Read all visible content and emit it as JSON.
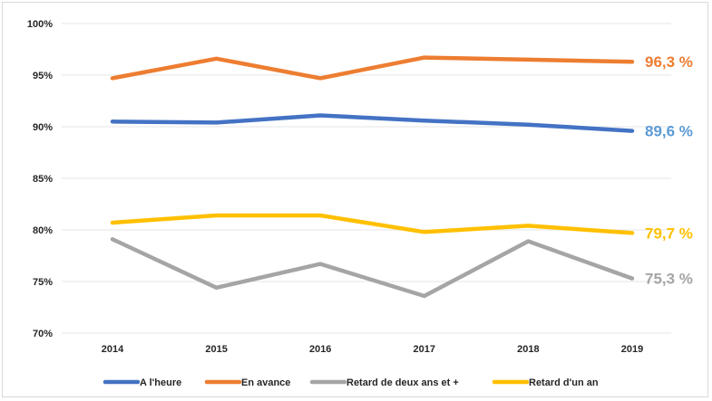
{
  "chart_data": {
    "type": "line",
    "categories": [
      "2014",
      "2015",
      "2016",
      "2017",
      "2018",
      "2019"
    ],
    "ylim": [
      0.7,
      1.0
    ],
    "yticks": [
      {
        "value": 1.0,
        "label": "100%"
      },
      {
        "value": 0.95,
        "label": "95%"
      },
      {
        "value": 0.9,
        "label": "90%"
      },
      {
        "value": 0.85,
        "label": "85%"
      },
      {
        "value": 0.8,
        "label": "80%"
      },
      {
        "value": 0.75,
        "label": "75%"
      },
      {
        "value": 0.7,
        "label": "70%"
      }
    ],
    "grid": true,
    "legend_position": "bottom",
    "series": [
      {
        "name": "A l'heure",
        "color": "#4472c4",
        "values": [
          0.905,
          0.904,
          0.911,
          0.906,
          0.902,
          0.896
        ],
        "end_label": "89,6 %"
      },
      {
        "name": "En avance",
        "color": "#ed7d31",
        "values": [
          0.947,
          0.966,
          0.947,
          0.967,
          0.965,
          0.963
        ],
        "end_label": "96,3 %"
      },
      {
        "name": "Retard de deux ans et +",
        "color": "#a5a5a5",
        "values": [
          0.791,
          0.744,
          0.767,
          0.736,
          0.789,
          0.753
        ],
        "end_label": "75,3 %"
      },
      {
        "name": "Retard d'un an",
        "color": "#ffc000",
        "values": [
          0.807,
          0.814,
          0.814,
          0.798,
          0.804,
          0.797
        ],
        "end_label": "79,7 %"
      }
    ]
  },
  "end_label_colors": {
    "A l'heure": "#5b9bd5",
    "En avance": "#ed7d31",
    "Retard de deux ans et +": "#a5a5a5",
    "Retard d'un an": "#ffc000"
  }
}
